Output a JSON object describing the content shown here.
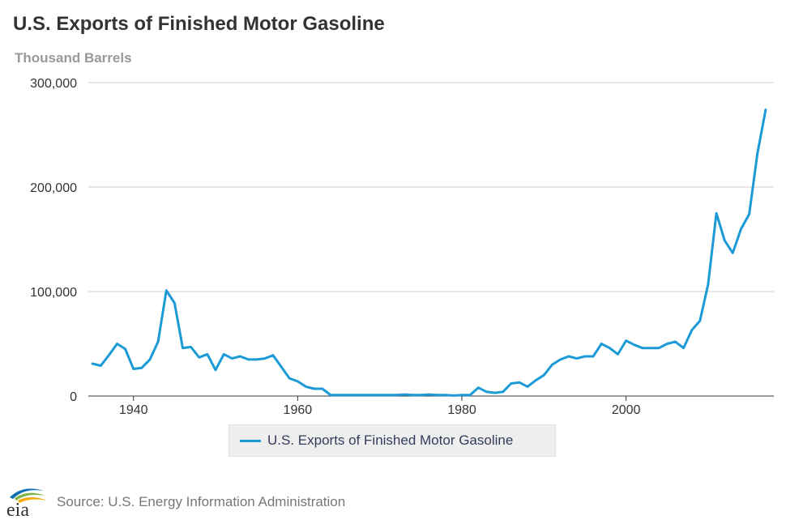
{
  "header": {
    "title": "U.S. Exports of Finished Motor Gasoline",
    "subtitle": "Thousand Barrels"
  },
  "footer": {
    "logo_text": "eia",
    "source": "Source: U.S. Energy Information Administration"
  },
  "colors": {
    "series": "#1c9ad6",
    "grid": "#cccccc",
    "axis": "#333333",
    "tick_text": "#333333"
  },
  "chart_data": {
    "type": "line",
    "title": "U.S. Exports of Finished Motor Gasoline",
    "ylabel": "Thousand Barrels",
    "xlabel": "",
    "xlim": [
      1934.5,
      2018
    ],
    "ylim": [
      0,
      300000
    ],
    "x_ticks": [
      {
        "value": 1940,
        "label": "1940"
      },
      {
        "value": 1960,
        "label": "1960"
      },
      {
        "value": 1980,
        "label": "1980"
      },
      {
        "value": 2000,
        "label": "2000"
      }
    ],
    "y_ticks": [
      {
        "value": 0,
        "label": "0"
      },
      {
        "value": 100000,
        "label": "100,000"
      },
      {
        "value": 200000,
        "label": "200,000"
      },
      {
        "value": 300000,
        "label": "300,000"
      }
    ],
    "legend": "bottom-center",
    "series": [
      {
        "name": "U.S. Exports of Finished Motor Gasoline",
        "x": [
          1935,
          1936,
          1937,
          1938,
          1939,
          1940,
          1941,
          1942,
          1943,
          1944,
          1945,
          1946,
          1947,
          1948,
          1949,
          1950,
          1951,
          1952,
          1953,
          1954,
          1955,
          1956,
          1957,
          1958,
          1959,
          1960,
          1961,
          1962,
          1963,
          1964,
          1965,
          1966,
          1967,
          1968,
          1969,
          1970,
          1971,
          1972,
          1973,
          1974,
          1975,
          1976,
          1977,
          1978,
          1979,
          1980,
          1981,
          1982,
          1983,
          1984,
          1985,
          1986,
          1987,
          1988,
          1989,
          1990,
          1991,
          1992,
          1993,
          1994,
          1995,
          1996,
          1997,
          1998,
          1999,
          2000,
          2001,
          2002,
          2003,
          2004,
          2005,
          2006,
          2007,
          2008,
          2009,
          2010,
          2011,
          2012,
          2013,
          2014,
          2015,
          2016,
          2017
        ],
        "values": [
          31000,
          29000,
          39000,
          50000,
          45000,
          26000,
          27000,
          35000,
          52000,
          101000,
          89000,
          46000,
          47000,
          37000,
          40000,
          25000,
          40000,
          36000,
          38000,
          35000,
          35000,
          36000,
          39000,
          28000,
          17000,
          14000,
          9000,
          7000,
          7000,
          1000,
          1000,
          1000,
          1000,
          1000,
          1000,
          1000,
          1000,
          1000,
          1500,
          1000,
          1000,
          1500,
          1000,
          1000,
          500,
          1000,
          1000,
          8000,
          4000,
          3000,
          4000,
          12000,
          13000,
          9000,
          15000,
          20000,
          30000,
          35000,
          38000,
          36000,
          38000,
          38000,
          50000,
          46000,
          40000,
          53000,
          49000,
          46000,
          46000,
          46000,
          50000,
          52000,
          46000,
          63000,
          72000,
          107000,
          175000,
          149000,
          137000,
          160000,
          174000,
          232000,
          274000
        ]
      }
    ]
  }
}
